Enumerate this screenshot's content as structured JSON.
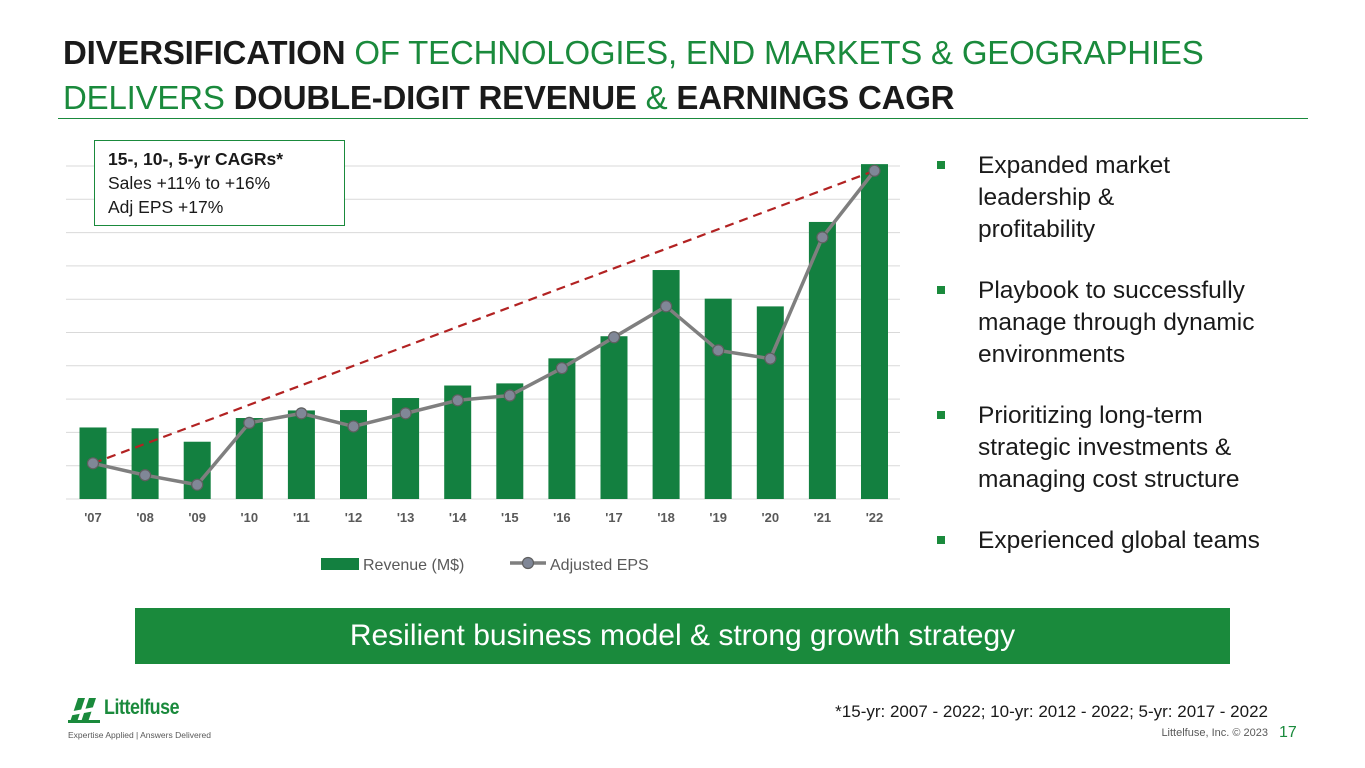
{
  "title": {
    "line1_bold": "DIVERSIFICATION",
    "line1_green": " OF TECHNOLOGIES, END MARKETS & GEOGRAPHIES",
    "line2_green": "DELIVERS ",
    "line2_bold1": "DOUBLE-DIGIT REVENUE",
    "line2_green2": " & ",
    "line2_bold2": "EARNINGS CAGR"
  },
  "callout": {
    "heading": "15-, 10-, 5-yr CAGRs*",
    "line1": "Sales +11% to +16%",
    "line2": "Adj EPS +17%"
  },
  "bullets": [
    {
      "text": "Expanded market leadership & profitability"
    },
    {
      "text": "Playbook to successfully manage through dynamic environments"
    },
    {
      "text": "Prioritizing long-term strategic investments & managing cost structure"
    },
    {
      "text": "Experienced global teams"
    }
  ],
  "banner": "Resilient business model & strong growth strategy",
  "footnote": "*15-yr: 2007 - 2022; 10-yr: 2012 - 2022; 5-yr: 2017 - 2022",
  "copyright": "Littelfuse, Inc. © 2023",
  "page_number": "17",
  "logo": {
    "wordmark": "Littelfuse",
    "tagline": "Expertise Applied | Answers Delivered"
  },
  "colors": {
    "green": "#1a8a3c",
    "bar": "#138040",
    "line": "#7f7f7f",
    "marker_fill": "#808797",
    "trend": "#b22222",
    "grid": "#d9d9d9",
    "text": "#1a1a1a"
  },
  "chart_data": {
    "type": "bar",
    "categories": [
      "'07",
      "'08",
      "'09",
      "'10",
      "'11",
      "'12",
      "'13",
      "'14",
      "'15",
      "'16",
      "'17",
      "'18",
      "'19",
      "'20",
      "'21",
      "'22"
    ],
    "series": [
      {
        "name": "Revenue (M$)",
        "type": "bar",
        "axis": "left",
        "values": [
          537,
          531,
          430,
          608,
          665,
          668,
          758,
          852,
          868,
          1056,
          1222,
          1719,
          1504,
          1446,
          2080,
          2514
        ]
      },
      {
        "name": "Adjusted EPS",
        "type": "line",
        "axis": "right",
        "values": [
          1.5,
          1.0,
          0.6,
          3.2,
          3.6,
          3.05,
          3.6,
          4.15,
          4.35,
          5.5,
          6.8,
          8.1,
          6.25,
          5.9,
          11.0,
          13.8
        ]
      }
    ],
    "trendline": {
      "style": "dashed",
      "from_category": "'07",
      "to_category": "'22",
      "meaning": "CAGR trend"
    },
    "ylim_left": [
      0,
      2500
    ],
    "ylim_right": [
      0,
      14
    ],
    "gridlines": 10,
    "grid": true,
    "legend": "bottom",
    "xlabel": "",
    "ylabel": "",
    "title": ""
  }
}
